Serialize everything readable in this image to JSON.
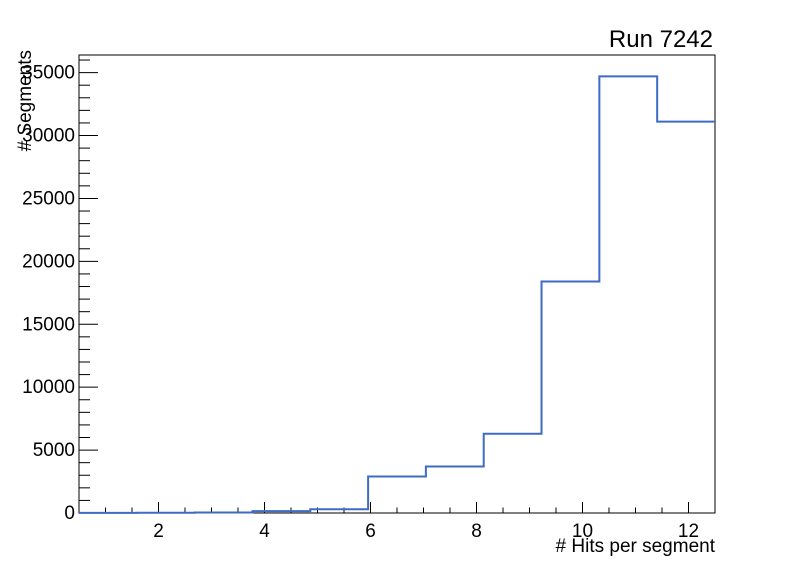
{
  "window": {
    "background_color": "#ffffff"
  },
  "chart_data": {
    "type": "histogram-step",
    "title": "Run 7242",
    "xlabel": "# Hits per segment",
    "ylabel": "# Segments",
    "xlim": [
      0.5,
      12.5
    ],
    "ylim": [
      0,
      36400
    ],
    "grid": false,
    "legend": null,
    "n_bins": 11,
    "bin_edges": [
      0.5,
      1.591,
      2.682,
      3.773,
      4.864,
      5.955,
      7.045,
      8.136,
      9.227,
      10.318,
      11.409,
      12.5
    ],
    "values": [
      5,
      15,
      40,
      150,
      300,
      2900,
      3700,
      6300,
      18400,
      34700,
      31100
    ],
    "x_major_ticks": [
      2,
      4,
      6,
      8,
      10,
      12
    ],
    "x_tick_labels": [
      "2",
      "4",
      "6",
      "8",
      "10",
      "12"
    ],
    "x_minor_step": 0.5,
    "y_major_ticks": [
      0,
      5000,
      10000,
      15000,
      20000,
      25000,
      30000,
      35000
    ],
    "y_tick_labels": [
      "0",
      "5000",
      "10000",
      "15000",
      "20000",
      "25000",
      "30000",
      "35000"
    ],
    "y_minor_step": 1000,
    "colors": {
      "line": "#3d6bc5",
      "frame": "#000000",
      "text": "#000000",
      "background": "#ffffff"
    }
  }
}
